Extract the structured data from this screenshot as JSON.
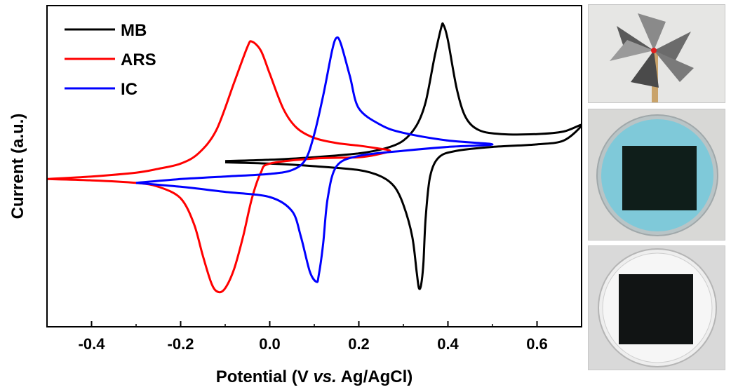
{
  "chart_data": {
    "type": "line",
    "title": "",
    "xlabel": "Potential (V vs. Ag/AgCl)",
    "xlabel_parts": {
      "pre": "Potential (V ",
      "italic": "vs.",
      "post": " Ag/AgCl)"
    },
    "ylabel": "Current (a.u.)",
    "xlim": [
      -0.5,
      0.7
    ],
    "ylim": [
      -1.15,
      1.35
    ],
    "x_ticks": [
      -0.4,
      -0.2,
      0.0,
      0.2,
      0.4,
      0.6
    ],
    "x_tick_labels": [
      "-0.4",
      "-0.2",
      "0.0",
      "0.2",
      "0.4",
      "0.6"
    ],
    "y_ticks_labeled": false,
    "grid": false,
    "legend_position": "top-left",
    "series": [
      {
        "name": "MB",
        "color": "#000000",
        "points": [
          [
            -0.1,
            0.14
          ],
          [
            0.0,
            0.15
          ],
          [
            0.1,
            0.17
          ],
          [
            0.2,
            0.2
          ],
          [
            0.26,
            0.24
          ],
          [
            0.3,
            0.3
          ],
          [
            0.33,
            0.42
          ],
          [
            0.35,
            0.6
          ],
          [
            0.37,
            0.95
          ],
          [
            0.385,
            1.18
          ],
          [
            0.39,
            1.2
          ],
          [
            0.4,
            1.08
          ],
          [
            0.42,
            0.7
          ],
          [
            0.44,
            0.48
          ],
          [
            0.47,
            0.38
          ],
          [
            0.52,
            0.35
          ],
          [
            0.6,
            0.35
          ],
          [
            0.66,
            0.37
          ],
          [
            0.7,
            0.42
          ],
          [
            0.66,
            0.3
          ],
          [
            0.6,
            0.27
          ],
          [
            0.5,
            0.25
          ],
          [
            0.42,
            0.22
          ],
          [
            0.38,
            0.17
          ],
          [
            0.36,
            0.02
          ],
          [
            0.35,
            -0.3
          ],
          [
            0.345,
            -0.65
          ],
          [
            0.34,
            -0.82
          ],
          [
            0.335,
            -0.85
          ],
          [
            0.33,
            -0.73
          ],
          [
            0.32,
            -0.45
          ],
          [
            0.3,
            -0.2
          ],
          [
            0.28,
            -0.06
          ],
          [
            0.25,
            0.02
          ],
          [
            0.2,
            0.07
          ],
          [
            0.1,
            0.1
          ],
          [
            0.0,
            0.12
          ],
          [
            -0.1,
            0.13
          ]
        ]
      },
      {
        "name": "ARS",
        "color": "#ff0000",
        "points": [
          [
            -0.5,
            0.0
          ],
          [
            -0.4,
            0.02
          ],
          [
            -0.3,
            0.05
          ],
          [
            -0.25,
            0.08
          ],
          [
            -0.2,
            0.12
          ],
          [
            -0.16,
            0.2
          ],
          [
            -0.12,
            0.38
          ],
          [
            -0.08,
            0.75
          ],
          [
            -0.05,
            1.03
          ],
          [
            -0.04,
            1.07
          ],
          [
            -0.02,
            1.0
          ],
          [
            0.0,
            0.82
          ],
          [
            0.03,
            0.55
          ],
          [
            0.06,
            0.4
          ],
          [
            0.1,
            0.32
          ],
          [
            0.15,
            0.28
          ],
          [
            0.2,
            0.26
          ],
          [
            0.24,
            0.24
          ],
          [
            0.27,
            0.22
          ],
          [
            0.24,
            0.19
          ],
          [
            0.2,
            0.17
          ],
          [
            0.1,
            0.16
          ],
          [
            0.0,
            0.12
          ],
          [
            -0.02,
            0.05
          ],
          [
            -0.04,
            -0.15
          ],
          [
            -0.06,
            -0.45
          ],
          [
            -0.08,
            -0.7
          ],
          [
            -0.1,
            -0.85
          ],
          [
            -0.115,
            -0.88
          ],
          [
            -0.13,
            -0.82
          ],
          [
            -0.15,
            -0.6
          ],
          [
            -0.17,
            -0.35
          ],
          [
            -0.2,
            -0.15
          ],
          [
            -0.25,
            -0.06
          ],
          [
            -0.3,
            -0.03
          ],
          [
            -0.4,
            -0.01
          ],
          [
            -0.5,
            0.0
          ]
        ]
      },
      {
        "name": "IC",
        "color": "#0000ff",
        "points": [
          [
            -0.3,
            -0.03
          ],
          [
            -0.2,
            0.0
          ],
          [
            -0.1,
            0.02
          ],
          [
            0.0,
            0.04
          ],
          [
            0.05,
            0.07
          ],
          [
            0.08,
            0.15
          ],
          [
            0.1,
            0.35
          ],
          [
            0.12,
            0.65
          ],
          [
            0.14,
            1.0
          ],
          [
            0.15,
            1.1
          ],
          [
            0.16,
            1.05
          ],
          [
            0.18,
            0.8
          ],
          [
            0.2,
            0.55
          ],
          [
            0.25,
            0.42
          ],
          [
            0.3,
            0.36
          ],
          [
            0.4,
            0.3
          ],
          [
            0.5,
            0.27
          ],
          [
            0.4,
            0.25
          ],
          [
            0.3,
            0.22
          ],
          [
            0.2,
            0.18
          ],
          [
            0.15,
            0.1
          ],
          [
            0.13,
            -0.15
          ],
          [
            0.12,
            -0.5
          ],
          [
            0.11,
            -0.75
          ],
          [
            0.105,
            -0.8
          ],
          [
            0.09,
            -0.72
          ],
          [
            0.07,
            -0.45
          ],
          [
            0.05,
            -0.25
          ],
          [
            0.0,
            -0.14
          ],
          [
            -0.1,
            -0.1
          ],
          [
            -0.2,
            -0.06
          ],
          [
            -0.3,
            -0.03
          ]
        ]
      }
    ]
  },
  "photos": [
    {
      "name": "pinwheel"
    },
    {
      "name": "dish-blue-dye"
    },
    {
      "name": "dish-clear"
    }
  ]
}
